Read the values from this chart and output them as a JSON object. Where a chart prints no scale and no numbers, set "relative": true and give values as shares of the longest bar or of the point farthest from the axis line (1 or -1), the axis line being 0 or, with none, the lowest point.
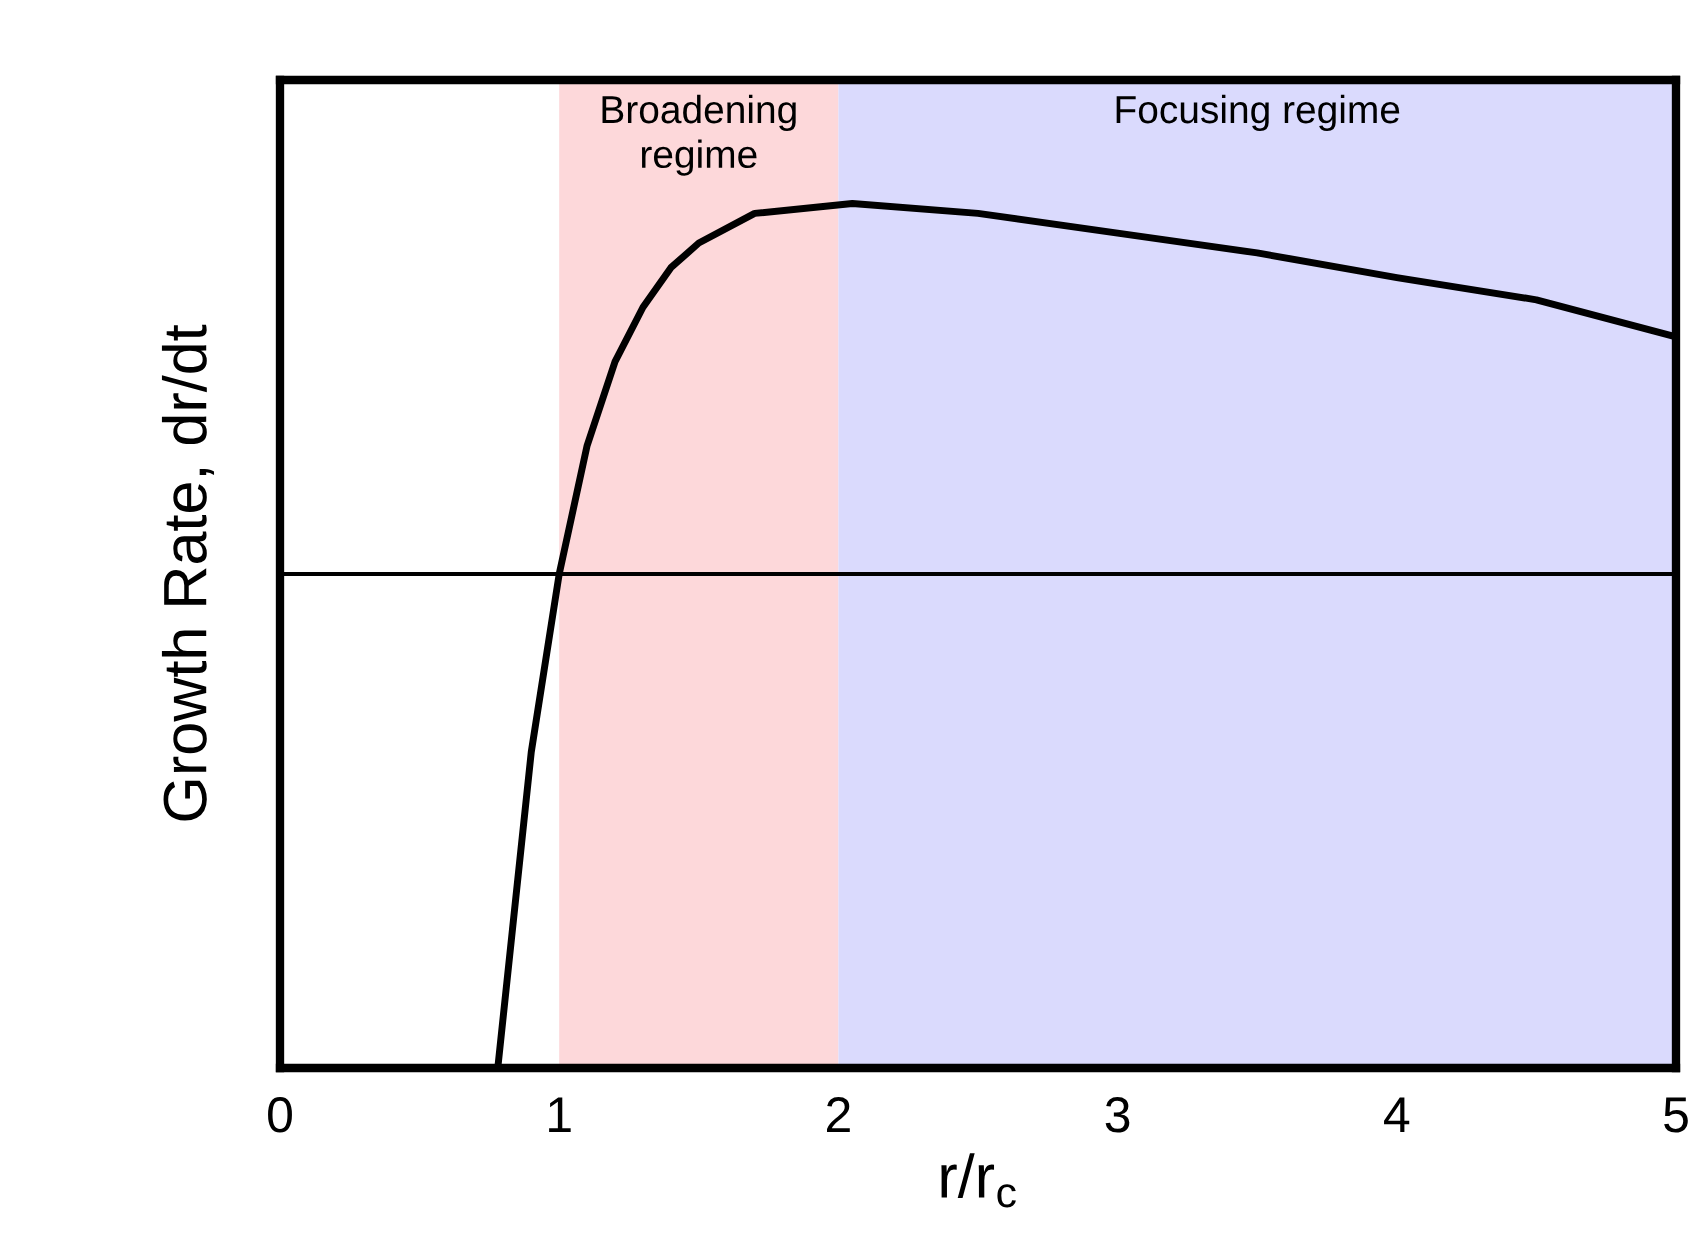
{
  "chart_data": {
    "type": "line",
    "xlabel": "r/r$_{c}$",
    "ylabel": "Growth Rate, dr/dt",
    "relative": true,
    "x": [
      0.78,
      0.9,
      1.0,
      1.1,
      1.2,
      1.3,
      1.4,
      1.5,
      1.7,
      2.05,
      2.5,
      3.0,
      3.5,
      4.0,
      4.5,
      5.0
    ],
    "series": [
      {
        "color": "#000000",
        "values": [
          -1,
          -0.36,
          0,
          0.26,
          0.43,
          0.54,
          0.62,
          0.67,
          0.73,
          0.75,
          0.73,
          0.69,
          0.65,
          0.6,
          0.555,
          0.48
        ]
      }
    ],
    "xlim": [
      0,
      5
    ],
    "xticks": [
      0,
      1,
      2,
      3,
      4,
      5
    ],
    "tick_labels": "x",
    "grid": false,
    "legend": false,
    "ref_lines": [
      {
        "axis": "y",
        "value": 0,
        "color": "#000000"
      }
    ],
    "bands": [
      {
        "axis": "x",
        "from": 1,
        "to": 2,
        "label": "Broadening\nregime",
        "color": "#fdd8da"
      },
      {
        "axis": "x",
        "from": 2,
        "to": 5,
        "label": "Focusing regime",
        "color": "#dadafd"
      }
    ]
  }
}
